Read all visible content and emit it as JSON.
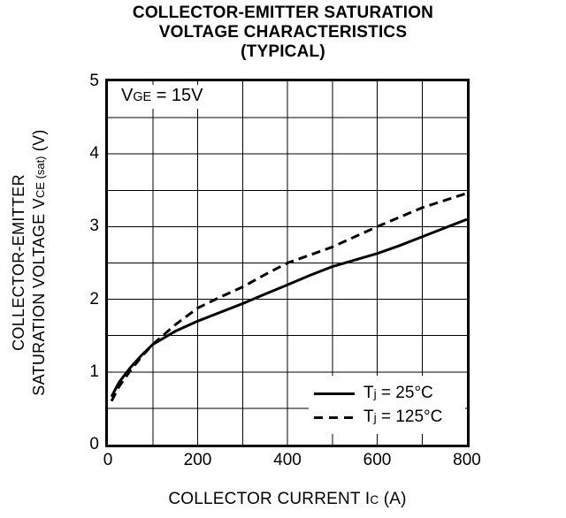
{
  "title": {
    "line1": "COLLECTOR-EMITTER SATURATION",
    "line2": "VOLTAGE CHARACTERISTICS",
    "line3": "(TYPICAL)"
  },
  "annotation": {
    "pre": "V",
    "sub": "GE",
    "post": " = 15V"
  },
  "axes": {
    "x": {
      "label_pre": "COLLECTOR CURRENT  I",
      "label_sub": "C",
      "label_post": " (A)"
    },
    "y": {
      "label_line1": "COLLECTOR-EMITTER",
      "label_line2_pre": "SATURATION VOLTAGE  V",
      "label_line2_sub": "CE (sat)",
      "label_line2_post": " (V)"
    }
  },
  "legend": {
    "items": [
      {
        "pre": "T",
        "sub": "j",
        "post": " = 25°C",
        "style": "solid"
      },
      {
        "pre": "T",
        "sub": "j",
        "post": " = 125°C",
        "style": "dashed"
      }
    ]
  },
  "colors": {
    "ink": "#000000",
    "background": "#ffffff"
  },
  "chart_data": {
    "type": "line",
    "title": "COLLECTOR-EMITTER SATURATION VOLTAGE CHARACTERISTICS (TYPICAL)",
    "xlabel": "COLLECTOR CURRENT IC (A)",
    "ylabel": "COLLECTOR-EMITTER SATURATION VOLTAGE VCE(sat) (V)",
    "annotation": "VGE = 15V",
    "xlim": [
      0,
      800
    ],
    "ylim": [
      0,
      5
    ],
    "grid": true,
    "legend_position": "lower right",
    "x_gridlines": [
      100,
      200,
      300,
      400,
      500,
      600,
      700
    ],
    "y_gridlines": [
      0.5,
      1,
      1.5,
      2,
      2.5,
      3,
      3.5,
      4,
      4.5
    ],
    "x_tick_values": [
      0,
      200,
      400,
      600,
      800
    ],
    "x_tick_labels": [
      "0",
      "200",
      "400",
      "600",
      "800"
    ],
    "y_tick_values": [
      0,
      1,
      2,
      3,
      4,
      5
    ],
    "y_tick_labels": [
      "0",
      "1",
      "2",
      "3",
      "4",
      "5"
    ],
    "series": [
      {
        "name": "Tj = 25°C",
        "style": "solid",
        "points": [
          [
            8,
            0.66
          ],
          [
            25,
            0.86
          ],
          [
            50,
            1.06
          ],
          [
            75,
            1.23
          ],
          [
            100,
            1.38
          ],
          [
            150,
            1.56
          ],
          [
            200,
            1.7
          ],
          [
            250,
            1.82
          ],
          [
            300,
            1.94
          ],
          [
            350,
            2.07
          ],
          [
            400,
            2.2
          ],
          [
            450,
            2.33
          ],
          [
            500,
            2.45
          ],
          [
            550,
            2.54
          ],
          [
            600,
            2.63
          ],
          [
            650,
            2.74
          ],
          [
            700,
            2.86
          ],
          [
            750,
            2.98
          ],
          [
            800,
            3.1
          ]
        ]
      },
      {
        "name": "Tj = 125°C",
        "style": "dashed",
        "points": [
          [
            8,
            0.6
          ],
          [
            25,
            0.8
          ],
          [
            50,
            1.02
          ],
          [
            75,
            1.21
          ],
          [
            100,
            1.38
          ],
          [
            150,
            1.65
          ],
          [
            200,
            1.88
          ],
          [
            250,
            2.03
          ],
          [
            300,
            2.17
          ],
          [
            350,
            2.34
          ],
          [
            400,
            2.5
          ],
          [
            450,
            2.61
          ],
          [
            500,
            2.72
          ],
          [
            550,
            2.86
          ],
          [
            600,
            3.0
          ],
          [
            650,
            3.13
          ],
          [
            700,
            3.26
          ],
          [
            750,
            3.36
          ],
          [
            800,
            3.46
          ]
        ]
      }
    ]
  }
}
